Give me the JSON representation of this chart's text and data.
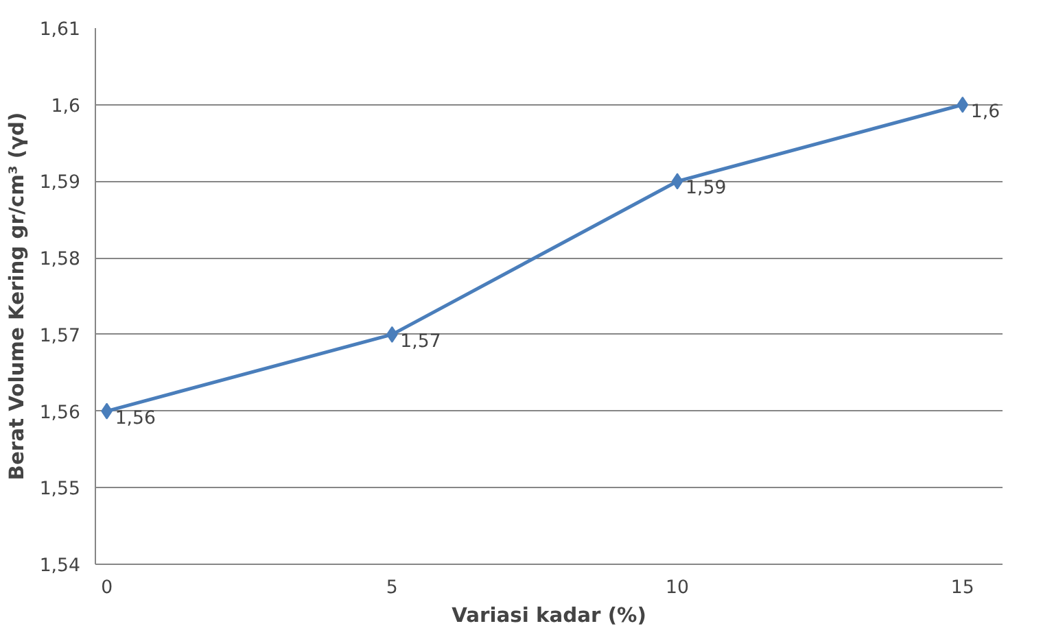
{
  "chart_data": {
    "type": "line",
    "xlabel": "Variasi kadar (%)",
    "ylabel": "Berat Volume Kering gr/cm³ (γd)",
    "x": [
      0,
      5,
      10,
      15
    ],
    "series": [
      {
        "color": "#4a7ebb",
        "values": [
          1.56,
          1.57,
          1.59,
          1.6
        ],
        "value_labels": [
          "1,56",
          "1,57",
          "1,59",
          "1,6"
        ]
      }
    ],
    "xlim": [
      -0.2,
      15.7
    ],
    "xticks": [
      0,
      5,
      10,
      15
    ],
    "ylim": [
      1.54,
      1.61
    ],
    "yticks": [
      {
        "value": 1.54,
        "label": "1,54"
      },
      {
        "value": 1.55,
        "label": "1,55"
      },
      {
        "value": 1.56,
        "label": "1,56"
      },
      {
        "value": 1.57,
        "label": "1,57"
      },
      {
        "value": 1.58,
        "label": "1,58"
      },
      {
        "value": 1.59,
        "label": "1,59"
      },
      {
        "value": 1.6,
        "label": "1,6"
      },
      {
        "value": 1.61,
        "label": "1,61"
      }
    ],
    "grid": "y",
    "marker": "diamond",
    "line_style": "solid"
  }
}
